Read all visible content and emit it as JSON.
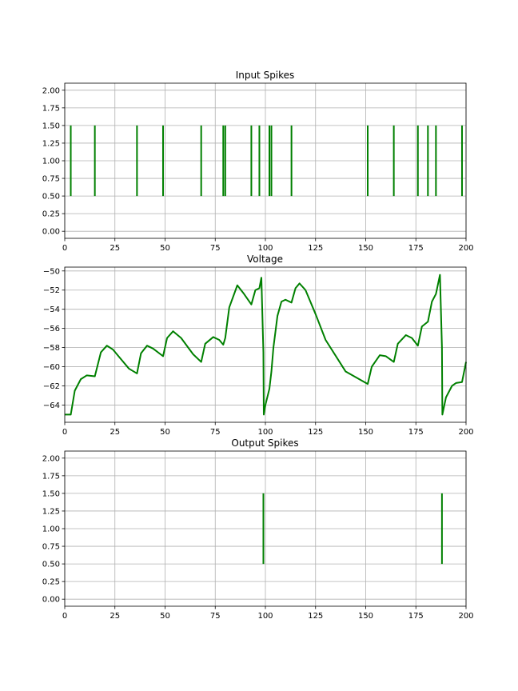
{
  "colors": {
    "series": "#008000",
    "grid": "#b0b0b0",
    "axis": "#000000",
    "background": "#ffffff"
  },
  "chart_data": [
    {
      "type": "event",
      "title": "Input Spikes",
      "xlim": [
        0,
        200
      ],
      "ylim": [
        -0.1,
        2.1
      ],
      "grid": true,
      "xticks": [
        "0",
        "25",
        "50",
        "75",
        "100",
        "125",
        "150",
        "175",
        "200"
      ],
      "yticks": [
        "0.00",
        "0.25",
        "0.50",
        "0.75",
        "1.00",
        "1.25",
        "1.50",
        "1.75",
        "2.00"
      ],
      "events": [
        3,
        15,
        36,
        49,
        68,
        79,
        80,
        93,
        97,
        102,
        103,
        113,
        151,
        164,
        176,
        181,
        185,
        198
      ],
      "event_range": [
        0.5,
        1.5
      ]
    },
    {
      "type": "line",
      "title": "Voltage",
      "xlim": [
        0,
        200
      ],
      "ylim": [
        -65.8,
        -49.6
      ],
      "grid": true,
      "xticks": [
        "0",
        "25",
        "50",
        "75",
        "100",
        "125",
        "150",
        "175",
        "200"
      ],
      "yticks": [
        "−64",
        "−62",
        "−60",
        "−58",
        "−56",
        "−54",
        "−52",
        "−50"
      ],
      "x": [
        0,
        3,
        5,
        8,
        11,
        15,
        18,
        21,
        24,
        28,
        32,
        36,
        38,
        41,
        44,
        49,
        51,
        54,
        58,
        64,
        68,
        70,
        74,
        77,
        79,
        80,
        82,
        86,
        89,
        93,
        95,
        97,
        98,
        99,
        99.2,
        100,
        102,
        103,
        104,
        106,
        108,
        110,
        113,
        115,
        117,
        120,
        125,
        130,
        140,
        151,
        153,
        157,
        160,
        164,
        166,
        170,
        173,
        176,
        178,
        181,
        183,
        185,
        187,
        188,
        188.2,
        190,
        193,
        195,
        198,
        200
      ],
      "y": [
        -65.0,
        -65.0,
        -62.5,
        -61.3,
        -60.9,
        -61.0,
        -58.5,
        -57.8,
        -58.2,
        -59.2,
        -60.2,
        -60.7,
        -58.6,
        -57.8,
        -58.1,
        -58.9,
        -57.0,
        -56.3,
        -57.0,
        -58.7,
        -59.5,
        -57.6,
        -56.9,
        -57.2,
        -57.7,
        -57.0,
        -53.8,
        -51.5,
        -52.3,
        -53.5,
        -52.0,
        -51.8,
        -50.7,
        -58.5,
        -65.0,
        -64.0,
        -62.3,
        -60.5,
        -58.0,
        -54.7,
        -53.2,
        -53.0,
        -53.3,
        -51.8,
        -51.3,
        -52.0,
        -54.5,
        -57.2,
        -60.5,
        -61.8,
        -60.0,
        -58.8,
        -58.9,
        -59.5,
        -57.6,
        -56.7,
        -57.0,
        -57.8,
        -55.8,
        -55.3,
        -53.2,
        -52.4,
        -50.4,
        -58.0,
        -65.0,
        -63.2,
        -62.0,
        -61.7,
        -61.6,
        -59.5
      ]
    },
    {
      "type": "event",
      "title": "Output Spikes",
      "xlim": [
        0,
        200
      ],
      "ylim": [
        -0.1,
        2.1
      ],
      "grid": true,
      "xticks": [
        "0",
        "25",
        "50",
        "75",
        "100",
        "125",
        "150",
        "175",
        "200"
      ],
      "yticks": [
        "0.00",
        "0.25",
        "0.50",
        "0.75",
        "1.00",
        "1.25",
        "1.50",
        "1.75",
        "2.00"
      ],
      "events": [
        99,
        188
      ],
      "event_range": [
        0.5,
        1.5
      ]
    }
  ]
}
